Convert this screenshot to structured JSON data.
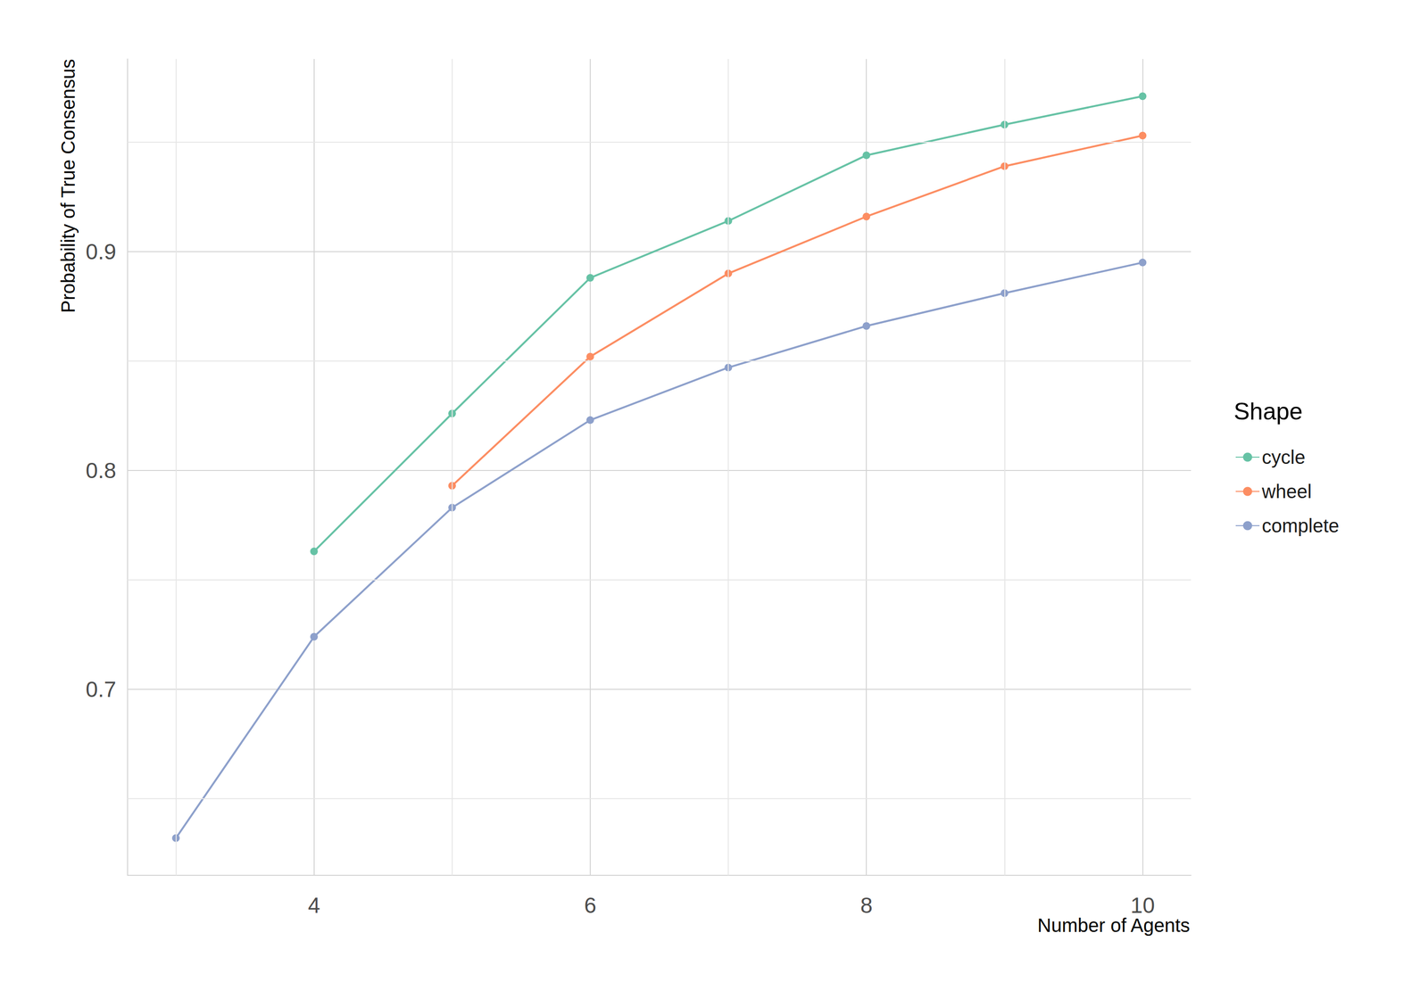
{
  "chart_data": {
    "type": "line",
    "x_label": "Number of Agents",
    "y_label": "Probability of True Consensus",
    "legend_title": "Shape",
    "x": [
      3,
      4,
      5,
      6,
      7,
      8,
      9,
      10
    ],
    "series": [
      {
        "name": "cycle",
        "color": "#66c2a5",
        "marker": "circle",
        "values": [
          null,
          0.763,
          0.826,
          0.888,
          0.914,
          0.944,
          0.958,
          0.971
        ]
      },
      {
        "name": "wheel",
        "color": "#fc8d62",
        "marker": "circle",
        "values": [
          null,
          null,
          0.793,
          0.852,
          0.89,
          0.916,
          0.939,
          0.953
        ]
      },
      {
        "name": "complete",
        "color": "#8da0cb",
        "marker": "circle",
        "values": [
          0.632,
          0.724,
          0.783,
          0.823,
          0.847,
          0.866,
          0.881,
          0.895
        ]
      }
    ],
    "xlim": [
      2.65,
      10.35
    ],
    "xticks": [
      4,
      6,
      8,
      10
    ],
    "ylim": [
      0.615,
      0.988
    ],
    "yticks": [
      0.7,
      0.8,
      0.9
    ],
    "grid": true,
    "legend": "right"
  }
}
